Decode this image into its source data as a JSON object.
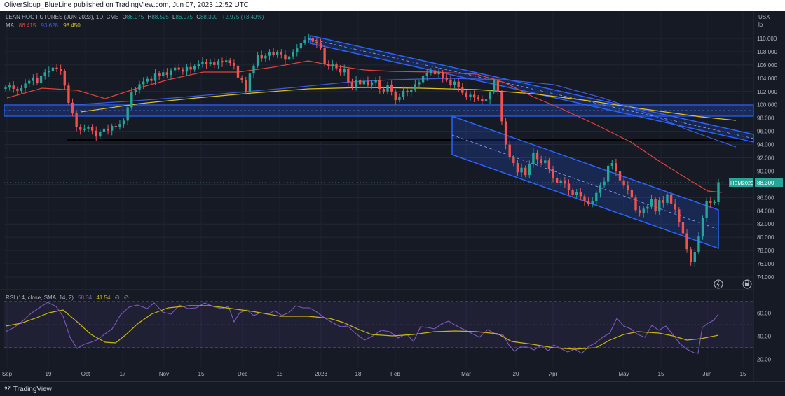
{
  "header": {
    "publisher_line": "OliverSloup_BlueLine published on TradingView.com, Jun 07, 2023 12:52 UTC"
  },
  "legend": {
    "symbol": "LEAN HOG FUTURES (JUN 2023), 1D, CME",
    "o_label": "O",
    "o_value": "86.075",
    "h_label": "H",
    "h_value": "88.525",
    "l_label": "L",
    "l_value": "86.075",
    "c_label": "C",
    "c_value": "88.300",
    "change": "+2.975 (+3.49%)",
    "ma_label": "MA",
    "ma_values": [
      "86.415",
      "93.628",
      "98.450"
    ]
  },
  "price_axis": {
    "currency": "USX",
    "unit": "lb",
    "ticks": [
      "110.000",
      "108.000",
      "106.000",
      "104.000",
      "102.000",
      "100.000",
      "98.000",
      "96.000",
      "94.000",
      "92.000",
      "90.000",
      "88.000",
      "86.000",
      "84.000",
      "82.000",
      "80.000",
      "78.000",
      "76.000",
      "74.000"
    ],
    "last_price_tag": "HEM2023",
    "last_price_value": "88.300"
  },
  "rsi": {
    "label": "RSI (14, close, SMA, 14, 2)",
    "value1": "58.34",
    "value2": "41.54",
    "zero1": "∅",
    "zero2": "∅",
    "ticks": [
      "60.00",
      "40.00",
      "20.00"
    ]
  },
  "time_axis": {
    "ticks": [
      "Sep",
      "19",
      "Oct",
      "17",
      "Nov",
      "15",
      "Dec",
      "15",
      "2023",
      "18",
      "Feb",
      "Mar",
      "20",
      "Apr",
      "May",
      "15",
      "Jun",
      "15"
    ]
  },
  "footer": {
    "brand": "TradingView"
  },
  "colors": {
    "background": "#161a25",
    "up": "#26a69a",
    "down": "#ef5350",
    "ma_fast": "#e0433a",
    "ma_mid": "#3b5bdb",
    "ma_slow": "#e0c21a",
    "channel": "#2962ff",
    "rsi_line": "#7e57c2",
    "rsi_signal": "#c8b511"
  },
  "chart_data": {
    "type": "candlestick",
    "title": "LEAN HOG FUTURES (JUN 2023), 1D, CME",
    "ylabel": "USX / lb",
    "ylim": [
      73,
      111.5
    ],
    "grid": true,
    "x_start_date": "2022-09-06",
    "last_close": 88.3,
    "closes": [
      102.6,
      102.9,
      102.4,
      102.1,
      102.5,
      103.2,
      103.6,
      104.1,
      103.3,
      104.4,
      104.9,
      105.1,
      105.6,
      105.4,
      105.1,
      102.9,
      100.3,
      98.7,
      96.6,
      96.2,
      96.4,
      96.6,
      96.1,
      95.2,
      95.9,
      96.4,
      96.1,
      96.8,
      96.7,
      97.1,
      97.6,
      99.6,
      101.9,
      102.3,
      103.1,
      103.5,
      103.9,
      103.6,
      104.7,
      104.4,
      104.9,
      104.5,
      105.2,
      105.6,
      105.3,
      105.0,
      105.7,
      105.3,
      105.8,
      106.2,
      106.5,
      106.1,
      106.4,
      106.0,
      106.6,
      106.4,
      106.7,
      106.3,
      105.9,
      104.1,
      103.7,
      102.0,
      104.7,
      105.9,
      107.5,
      107.0,
      107.4,
      107.9,
      107.5,
      107.9,
      107.6,
      106.8,
      107.3,
      107.9,
      108.5,
      109.3,
      109.8,
      110.1,
      109.5,
      109.3,
      108.6,
      106.2,
      105.9,
      106.1,
      105.5,
      104.9,
      105.4,
      103.4,
      102.6,
      103.7,
      103.1,
      103.6,
      102.9,
      103.4,
      103.7,
      102.4,
      102.0,
      103.0,
      102.0,
      100.7,
      101.2,
      102.1,
      101.9,
      102.3,
      103.1,
      103.4,
      104.3,
      104.8,
      105.2,
      104.6,
      104.9,
      104.1,
      103.8,
      103.0,
      103.5,
      102.6,
      101.8,
      101.2,
      101.5,
      101.1,
      100.9,
      100.5,
      100.8,
      101.9,
      103.6,
      101.9,
      97.5,
      94.0,
      92.1,
      91.2,
      89.8,
      90.5,
      89.4,
      91.1,
      92.8,
      91.8,
      91.2,
      91.6,
      90.3,
      89.0,
      88.2,
      88.6,
      88.1,
      87.1,
      86.4,
      86.8,
      86.2,
      85.5,
      85.0,
      85.4,
      86.7,
      87.8,
      88.4,
      90.8,
      91.2,
      90.0,
      88.6,
      87.8,
      87.1,
      86.0,
      84.1,
      83.6,
      84.3,
      84.6,
      85.8,
      83.9,
      85.6,
      85.2,
      86.5,
      85.1,
      84.2,
      82.3,
      80.6,
      78.2,
      76.3,
      77.8,
      80.1,
      82.9,
      85.5,
      85.2,
      85.3,
      88.3
    ],
    "rsi": {
      "ylim": [
        15,
        75
      ],
      "overbought": 70,
      "oversold": 30,
      "last": 58.34,
      "signal_last": 41.54
    },
    "annotations": [
      "descending channel",
      "horizontal support ~99.5",
      "horizontal level ~94.8",
      "descending trendline channel from Dec highs"
    ]
  }
}
